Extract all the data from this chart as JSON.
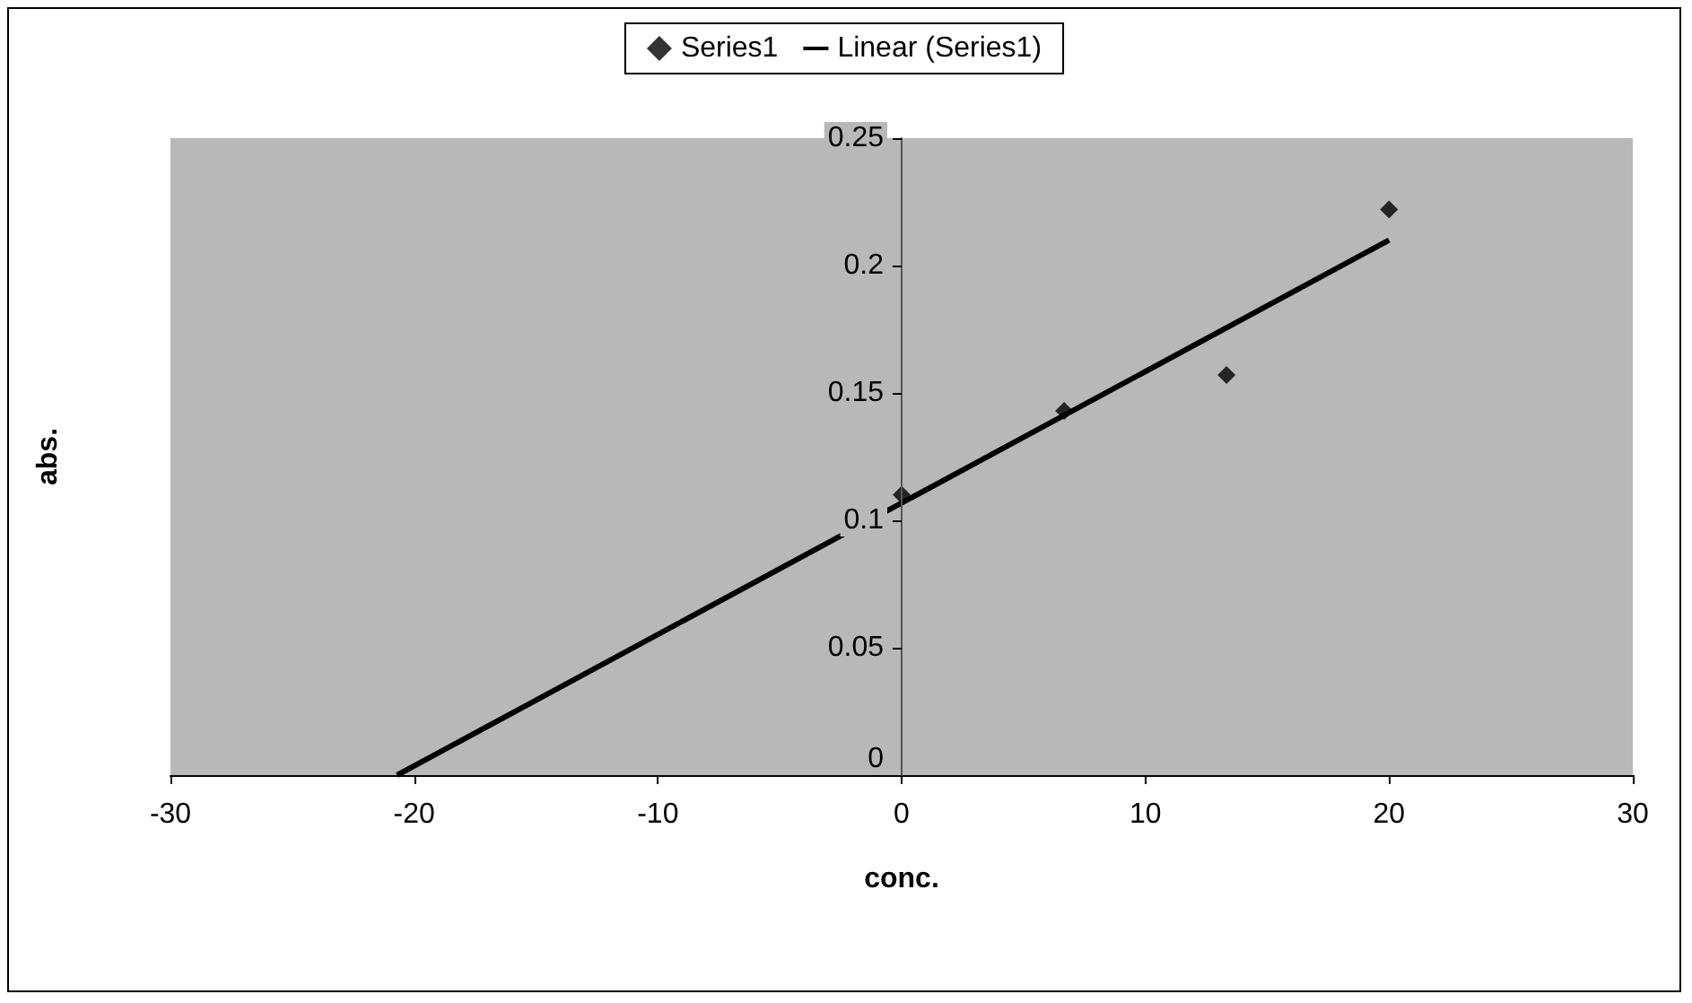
{
  "chart_data": {
    "type": "scatter",
    "xlabel": "conc.",
    "ylabel": "abs.",
    "series": [
      {
        "name": "Series1",
        "type": "scatter",
        "color": "#000000",
        "x": [
          0,
          6.67,
          13.33,
          20
        ],
        "values": [
          0.11,
          0.143,
          0.157,
          0.222
        ],
        "marker": "diamond"
      },
      {
        "name": "Linear (Series1)",
        "type": "line",
        "color": "#000000",
        "x": [
          -20.7,
          20
        ],
        "values": [
          0,
          0.21
        ],
        "marker": "none"
      }
    ],
    "xlim": [
      -30,
      30
    ],
    "xticks": [
      -30,
      -20,
      -10,
      0,
      10,
      20,
      30
    ],
    "ylim": [
      0,
      0.25
    ],
    "yticks": [
      0,
      0.05,
      0.1,
      0.15,
      0.2,
      0.25
    ],
    "grid": false,
    "legend": "top"
  }
}
